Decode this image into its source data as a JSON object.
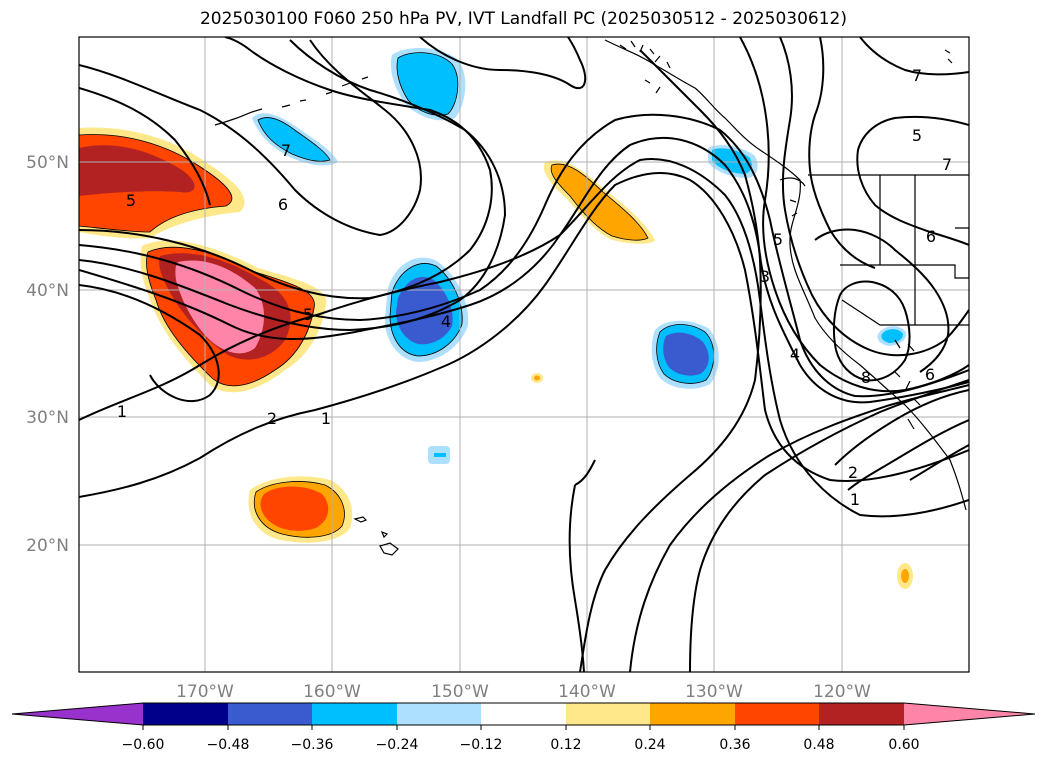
{
  "title": "2025030100 F060 250 hPa PV, IVT Landfall PC (2025030512 - 2025030612)",
  "map": {
    "lon_labels": [
      "170°W",
      "160°W",
      "150°W",
      "140°W",
      "130°W",
      "120°W"
    ],
    "lat_labels": [
      "50°N",
      "40°N",
      "30°N",
      "20°N"
    ],
    "contour_labels": [
      "1",
      "2",
      "1",
      "5",
      "6",
      "7",
      "5",
      "4",
      "3",
      "5",
      "4",
      "6",
      "8",
      "2",
      "1",
      "7",
      "5",
      "6",
      "7"
    ]
  },
  "colorbar": {
    "ticks": [
      "−0.60",
      "−0.48",
      "−0.36",
      "−0.24",
      "−0.12",
      "0.12",
      "0.24",
      "0.36",
      "0.48",
      "0.60"
    ],
    "colors": [
      "#9932CC",
      "#00008B",
      "#3A5BD0",
      "#00BFFF",
      "#ADDFFF",
      "#FFFFFF",
      "#FFE88A",
      "#FFA500",
      "#FF4500",
      "#B22222",
      "#FF85A8"
    ]
  }
}
